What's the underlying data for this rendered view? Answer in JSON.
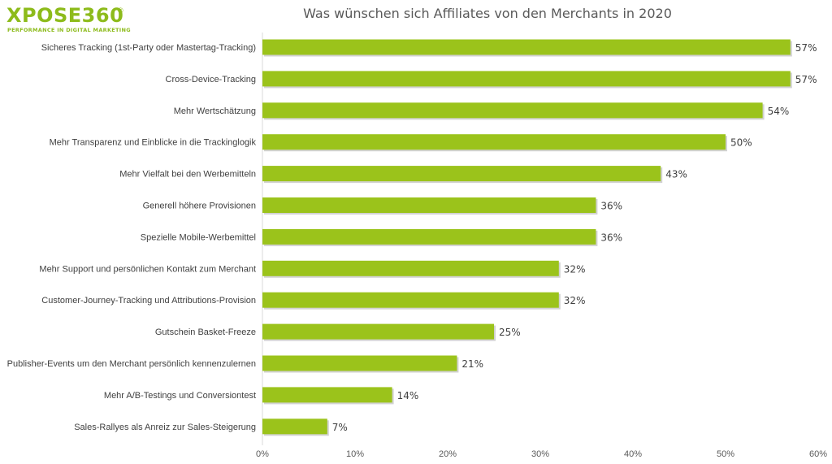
{
  "logo": {
    "name": "XPOSE360",
    "registered": "®",
    "tagline": "PERFORMANCE IN DIGITAL MARKETING"
  },
  "colors": {
    "bar": "#9bc31b",
    "bar_shadow": "#bfbfbf",
    "axis_text": "#595959",
    "label_text": "#404040",
    "gridline": "#d9d9d9",
    "brand": "#8dbb1b"
  },
  "chart_data": {
    "type": "bar",
    "orientation": "horizontal",
    "title": "Was wünschen sich Affiliates von den Merchants in 2020",
    "categories": [
      "Sicheres Tracking (1st-Party oder Mastertag-Tracking)",
      "Cross-Device-Tracking",
      "Mehr Wertschätzung",
      "Mehr Transparenz und Einblicke in die Trackinglogik",
      "Mehr Vielfalt bei den Werbemitteln",
      "Generell höhere Provisionen",
      "Spezielle Mobile-Werbemittel",
      "Mehr Support und persönlichen Kontakt zum Merchant",
      "Customer-Journey-Tracking und Attributions-Provision",
      "Gutschein Basket-Freeze",
      "Publisher-Events um den Merchant persönlich kennenzulernen",
      "Mehr A/B-Testings und Conversiontest",
      "Sales-Rallyes als Anreiz zur Sales-Steigerung"
    ],
    "values": [
      57,
      57,
      54,
      50,
      43,
      36,
      36,
      32,
      32,
      25,
      21,
      14,
      7
    ],
    "value_labels": [
      "57%",
      "57%",
      "54%",
      "50%",
      "43%",
      "36%",
      "36%",
      "32%",
      "32%",
      "25%",
      "21%",
      "14%",
      "7%"
    ],
    "xlim": [
      0,
      60
    ],
    "xticks": [
      "0%",
      "10%",
      "20%",
      "30%",
      "40%",
      "50%",
      "60%"
    ],
    "xlabel": "",
    "ylabel": "",
    "grid": false,
    "legend": "none"
  }
}
